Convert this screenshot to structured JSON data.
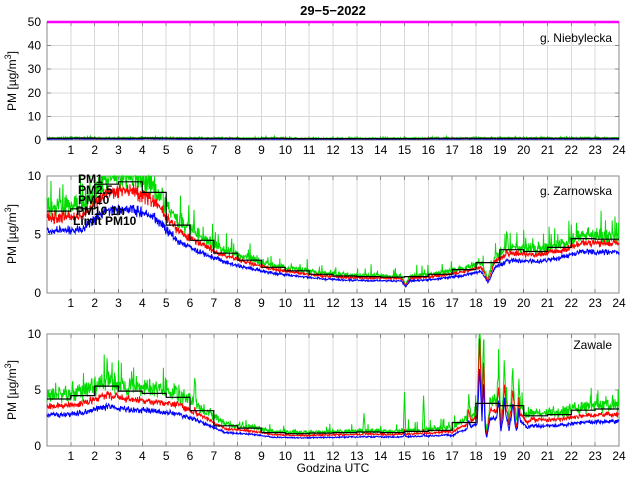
{
  "title": "29−5−2022",
  "xlabel": "Godzina UTC",
  "ylabel": {
    "pre": "PM [µg/m",
    "sup": "3",
    "post": "]"
  },
  "x_ticks": [
    1,
    2,
    3,
    4,
    5,
    6,
    7,
    8,
    9,
    10,
    11,
    12,
    13,
    14,
    15,
    16,
    17,
    18,
    19,
    20,
    21,
    22,
    23,
    24
  ],
  "colors": {
    "pm1": "#0000ff",
    "pm25": "#ff0000",
    "pm10": "#00dc00",
    "pm10_1h": "#000000",
    "limit": "#ff00ff",
    "grid": "#d9d9d9",
    "axis": "#888888"
  },
  "legend": [
    {
      "label": "PM1",
      "color": "#0000ff"
    },
    {
      "label": "PM2.5",
      "color": "#ff0000"
    },
    {
      "label": "PM10",
      "color": "#00dc00"
    },
    {
      "label": "PM10 1h",
      "color": "#000000"
    },
    {
      "label": "Limit PM10",
      "color": "#ff00ff"
    }
  ],
  "chart_data": [
    {
      "type": "line",
      "station": "g. Niebylecka",
      "x_range": [
        0,
        24
      ],
      "ylim": [
        0,
        50
      ],
      "yticks": [
        0,
        10,
        20,
        30,
        40,
        50
      ],
      "limit_pm10": 50,
      "pm10_1h_hourly": [
        0.7,
        0.8,
        0.7,
        0.7,
        0.8,
        0.7,
        0.7,
        0.7,
        0.6,
        0.7,
        0.6,
        0.6,
        0.6,
        0.6,
        0.6,
        0.6,
        0.7,
        0.7,
        0.7,
        0.7,
        0.7,
        0.7,
        0.7,
        0.7
      ],
      "series": [
        {
          "name": "PM1",
          "color": "#0000ff",
          "ratio": 0.65,
          "noise": 0.35
        },
        {
          "name": "PM2.5",
          "color": "#ff0000",
          "ratio": 0.9,
          "noise": 0.35
        },
        {
          "name": "PM10",
          "color": "#00dc00",
          "ratio": 1.25,
          "noise": 0.45
        }
      ],
      "noise_model": {
        "green_pop_p": 0.05,
        "green_pop_cap": 0.9
      },
      "spikes": [],
      "dips": []
    },
    {
      "type": "line",
      "station": "g. Zarnowska",
      "x_range": [
        0,
        24
      ],
      "ylim": [
        0,
        10
      ],
      "yticks": [
        0,
        5,
        10
      ],
      "limit_pm10": 50,
      "pm10_1h_hourly": [
        7.0,
        7.2,
        9.3,
        9.5,
        8.6,
        5.8,
        4.5,
        3.4,
        2.8,
        2.2,
        1.9,
        1.6,
        1.45,
        1.4,
        1.35,
        1.4,
        1.6,
        2.0,
        2.6,
        3.7,
        3.55,
        3.9,
        4.65,
        4.6
      ],
      "series": [
        {
          "name": "PM1",
          "color": "#0000ff",
          "ratio": 0.76,
          "noise": 0.09
        },
        {
          "name": "PM2.5",
          "color": "#ff0000",
          "ratio": 0.92,
          "noise": 0.09
        },
        {
          "name": "PM10",
          "color": "#00dc00",
          "ratio": 1.06,
          "noise": 0.16
        }
      ],
      "noise_model": {
        "green_pop_p": 0.07,
        "green_pop_cap": 2.0
      },
      "spikes": [
        {
          "t": 19.3,
          "w": 0.06,
          "amp": 1.8,
          "sr": 0.3,
          "sb": 0.15
        }
      ],
      "dips": [
        {
          "t": 15.05,
          "w": 0.18,
          "f": 0.5
        },
        {
          "t": 18.5,
          "w": 0.3,
          "f": 0.45
        }
      ]
    },
    {
      "type": "line",
      "station": "Zawale",
      "x_range": [
        0,
        24
      ],
      "ylim": [
        0,
        10
      ],
      "yticks": [
        0,
        5,
        10
      ],
      "limit_pm10": 50,
      "pm10_1h_hourly": [
        4.2,
        4.5,
        5.35,
        4.9,
        4.7,
        4.35,
        3.15,
        1.8,
        1.6,
        1.2,
        1.1,
        1.15,
        1.2,
        1.25,
        1.2,
        1.3,
        1.4,
        2.1,
        3.8,
        3.6,
        2.7,
        2.8,
        3.2,
        3.3
      ],
      "series": [
        {
          "name": "PM1",
          "color": "#0000ff",
          "ratio": 0.66,
          "noise": 0.1
        },
        {
          "name": "PM2.5",
          "color": "#ff0000",
          "ratio": 0.85,
          "noise": 0.1
        },
        {
          "name": "PM10",
          "color": "#00dc00",
          "ratio": 1.08,
          "noise": 0.2
        }
      ],
      "noise_model": {
        "green_pop_p": 0.06,
        "green_pop_cap": 2.0
      },
      "spikes": [
        {
          "t": 6.2,
          "w": 0.06,
          "amp": 2.6,
          "sr": 0.15,
          "sb": 0.08
        },
        {
          "t": 13.3,
          "w": 0.05,
          "amp": 1.7,
          "sr": 0.1,
          "sb": 0.05
        },
        {
          "t": 15.0,
          "w": 0.05,
          "amp": 3.6,
          "sr": 0.12,
          "sb": 0.06
        },
        {
          "t": 15.8,
          "w": 0.05,
          "amp": 3.1,
          "sr": 0.12,
          "sb": 0.06
        },
        {
          "t": 17.7,
          "w": 0.08,
          "amp": 1.8,
          "sr": 0.7,
          "sb": 0.4
        },
        {
          "t": 18.15,
          "w": 0.1,
          "amp": 8.0,
          "sr": 0.85,
          "sb": 0.6
        },
        {
          "t": 18.32,
          "w": 0.07,
          "amp": 6.5,
          "sr": 0.8,
          "sb": 0.55
        },
        {
          "t": 18.95,
          "w": 0.08,
          "amp": 2.6,
          "sr": 0.8,
          "sb": 0.6
        },
        {
          "t": 19.2,
          "w": 0.07,
          "amp": 3.0,
          "sr": 0.8,
          "sb": 0.6
        },
        {
          "t": 19.55,
          "w": 0.08,
          "amp": 2.6,
          "sr": 0.75,
          "sb": 0.55
        },
        {
          "t": 19.8,
          "w": 0.06,
          "amp": 2.0,
          "sr": 0.7,
          "sb": 0.5
        }
      ],
      "dips": [
        {
          "t": 17.0,
          "w": 0.3,
          "f": 0.8
        },
        {
          "t": 18.45,
          "w": 0.15,
          "f": 0.3
        },
        {
          "t": 19.05,
          "w": 0.07,
          "f": 0.55
        },
        {
          "t": 19.38,
          "w": 0.07,
          "f": 0.55
        },
        {
          "t": 19.7,
          "w": 0.1,
          "f": 0.6
        },
        {
          "t": 20.15,
          "w": 0.2,
          "f": 0.8
        }
      ]
    }
  ]
}
